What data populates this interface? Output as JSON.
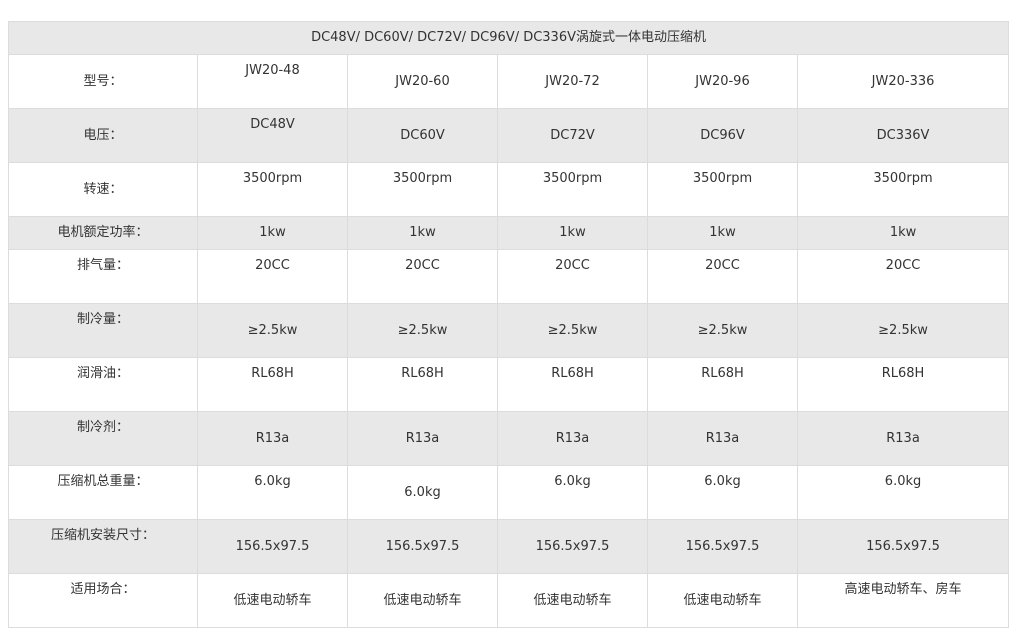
{
  "title": "DC48V/ DC60V/ DC72V/ DC96V/ DC336V涡旋式一体电动压缩机",
  "rows": [
    {
      "label": "型号：",
      "values": [
        "JW20-48",
        "JW20-60",
        "JW20-72",
        "JW20-96",
        "JW20-336"
      ]
    },
    {
      "label": "电压：",
      "values": [
        "DC48V",
        "DC60V",
        "DC72V",
        "DC96V",
        "DC336V"
      ]
    },
    {
      "label": "转速：",
      "values": [
        "3500rpm",
        "3500rpm",
        "3500rpm",
        "3500rpm",
        "3500rpm"
      ]
    },
    {
      "label": "电机额定功率：",
      "values": [
        "1kw",
        "1kw",
        "1kw",
        "1kw",
        "1kw"
      ]
    },
    {
      "label": "排气量：",
      "values": [
        "20CC",
        "20CC",
        "20CC",
        "20CC",
        "20CC"
      ]
    },
    {
      "label": "制冷量：",
      "values": [
        "≥2.5kw",
        "≥2.5kw",
        "≥2.5kw",
        "≥2.5kw",
        "≥2.5kw"
      ]
    },
    {
      "label": "润滑油：",
      "values": [
        "RL68H",
        "RL68H",
        "RL68H",
        "RL68H",
        "RL68H"
      ]
    },
    {
      "label": "制冷剂：",
      "values": [
        "R13a",
        "R13a",
        "R13a",
        "R13a",
        "R13a"
      ]
    },
    {
      "label": "压缩机总重量：",
      "values": [
        "6.0kg",
        "6.0kg",
        "6.0kg",
        "6.0kg",
        "6.0kg"
      ]
    },
    {
      "label": "压缩机安装尺寸：",
      "values": [
        "156.5x97.5",
        "156.5x97.5",
        "156.5x97.5",
        "156.5x97.5",
        "156.5x97.5"
      ]
    },
    {
      "label": "适用场合：",
      "values": [
        "低速电动轿车",
        "低速电动轿车",
        "低速电动轿车",
        "低速电动轿车",
        "高速电动轿车、房车"
      ]
    }
  ]
}
